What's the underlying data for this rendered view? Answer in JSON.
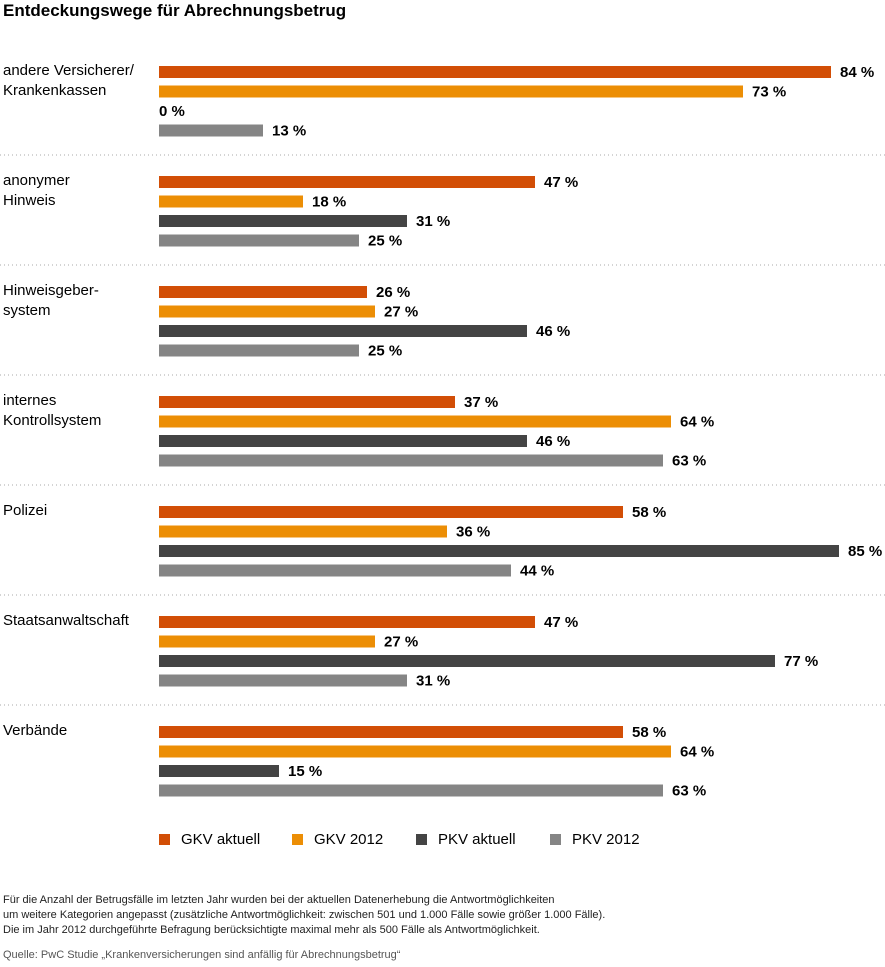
{
  "chart_data": {
    "type": "bar",
    "orientation": "horizontal",
    "title": "Entdeckungswege für Abrechnungsbetrug",
    "categories": [
      "andere Versicherer/\nKrankenkassen",
      "anonymer\nHinweis",
      "Hinweisgeber-\nsystem",
      "internes\nKontrollsystem",
      "Polizei",
      "Staatsanwaltschaft",
      "Verbände"
    ],
    "series": [
      {
        "name": "GKV aktuell",
        "color": "#d24e06",
        "values": [
          84,
          47,
          26,
          37,
          58,
          47,
          58
        ]
      },
      {
        "name": "GKV 2012",
        "color": "#ec8e05",
        "values": [
          73,
          18,
          27,
          64,
          36,
          27,
          64
        ]
      },
      {
        "name": "PKV aktuell",
        "color": "#444444",
        "values": [
          0,
          31,
          46,
          46,
          85,
          77,
          15
        ]
      },
      {
        "name": "PKV 2012",
        "color": "#858585",
        "values": [
          13,
          25,
          25,
          63,
          44,
          31,
          63
        ]
      }
    ],
    "value_suffix": " %",
    "xlim": [
      0,
      85
    ],
    "grid": false,
    "separators": "dotted",
    "legend_position": "bottom"
  },
  "footnote": "Für die Anzahl der Betrugsfälle im letzten Jahr wurden bei der aktuellen Datenerhebung die Antwortmöglichkeiten\num weitere Kategorien angepasst (zusätzliche Antwortmöglichkeit: zwischen 501 und 1.000 Fälle sowie größer 1.000 Fälle).\nDie im Jahr 2012 durchgeführte Befragung berücksichtigte maximal mehr als 500 Fälle als Antwortmöglichkeit.",
  "source": "Quelle: PwC Studie „Krankenversicherungen sind anfällig für Abrechnungsbetrug“"
}
